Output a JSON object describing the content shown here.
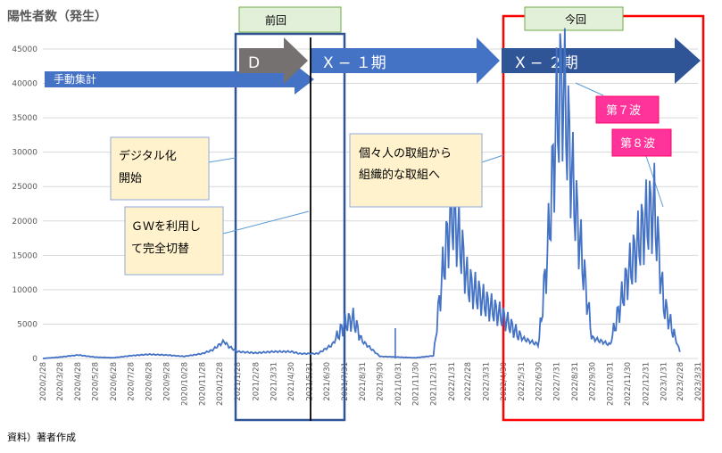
{
  "chart_data": {
    "type": "line",
    "title": "陽性者数（発生）",
    "source_note": "資料）著者作成",
    "ylim": [
      0,
      45000
    ],
    "y_ticks": [
      0,
      5000,
      10000,
      15000,
      20000,
      25000,
      30000,
      35000,
      40000,
      45000
    ],
    "x_ticks": [
      "2020/2/28",
      "2020/3/28",
      "2020/4/28",
      "2020/5/28",
      "2020/6/28",
      "2020/7/28",
      "2020/8/28",
      "2020/9/28",
      "2020/10/28",
      "2020/11/28",
      "2020/12/28",
      "2021/1/28",
      "2021/2/28",
      "2021/3/31",
      "2021/4/30",
      "2021/5/31",
      "2021/6/30",
      "2021/7/31",
      "2021/8/31",
      "2021/9/30",
      "2021/10/31",
      "2021/11/30",
      "2021/12/31",
      "2022/1/31",
      "2022/2/28",
      "2022/3/31",
      "2022/4/30",
      "2022/5/31",
      "2022/6/30",
      "2022/7/31",
      "2022/8/31",
      "2022/9/30",
      "2022/10/31",
      "2022/11/30",
      "2022/12/31",
      "2023/1/31",
      "2023/2/28",
      "2023/3/31"
    ],
    "x_tick_labels": [
      "2020/2/28",
      "2020/3/28",
      "2020/4/28",
      "2020/5/28",
      "2020/6/28",
      "2020/7/28",
      "2020/8/28",
      "2020/9/28",
      "2020/10/28",
      "2020/11/28",
      "2020/12/28",
      "2021/1/28",
      "2021/2/28",
      "2021/3/31",
      "2021/4/30",
      "2021/5/31",
      "2021/6/30",
      "2021/7/31",
      "2021/8/31",
      "2021/9/30",
      "2021/10/31",
      "2021/11/30",
      "2021/12/31",
      "2022/1/31",
      "2022/2/28",
      "2022/3/31",
      "2022/4/30",
      "2022/5/31",
      "2022/6/30",
      "2022/7/31",
      "2022/8/31",
      "2022/9/30",
      "2022/10/31",
      "2022/11/30",
      "2022/12/31",
      "2023/1/31",
      "2023/2/28",
      "2023/3/31"
    ],
    "series": [
      {
        "color": "#4472c4",
        "x": [
          "2020/2/28",
          "2020/3/28",
          "2020/4/28",
          "2020/5/28",
          "2020/6/28",
          "2020/7/28",
          "2020/8/28",
          "2020/9/28",
          "2020/10/28",
          "2020/11/28",
          "2020/12/15",
          "2021/1/5",
          "2021/1/12",
          "2021/1/28",
          "2021/2/28",
          "2021/3/31",
          "2021/4/30",
          "2021/5/15",
          "2021/6/15",
          "2021/7/10",
          "2021/7/31",
          "2021/8/15",
          "2021/8/31",
          "2021/9/30",
          "2021/10/31",
          "2021/11/30",
          "2021/12/31",
          "2022/1/15",
          "2022/1/31",
          "2022/2/15",
          "2022/2/28",
          "2022/3/31",
          "2022/4/30",
          "2022/5/31",
          "2022/6/30",
          "2022/7/15",
          "2022/7/31",
          "2022/8/10",
          "2022/8/31",
          "2022/9/30",
          "2022/10/31",
          "2022/11/30",
          "2022/12/31",
          "2023/1/15",
          "2023/1/31",
          "2023/2/28"
        ],
        "y": [
          0,
          200,
          500,
          200,
          100,
          400,
          600,
          500,
          300,
          700,
          1200,
          2500,
          1800,
          1000,
          800,
          1000,
          1000,
          700,
          700,
          2000,
          5000,
          5700,
          2500,
          300,
          200,
          100,
          400,
          12000,
          21500,
          17000,
          11000,
          8000,
          6000,
          3000,
          2000,
          15000,
          35000,
          40500,
          23000,
          3000,
          2000,
          12000,
          20000,
          22000,
          8000,
          1000
        ],
        "weekly_oscillation": true
      }
    ],
    "annotations": {
      "phases": [
        {
          "label": "D",
          "color": "#767171"
        },
        {
          "label": "X − １期",
          "color": "#4472c4"
        },
        {
          "label": "X − ２期",
          "color": "#2f5597"
        }
      ],
      "manual_count": "手動集計",
      "previous": "前回",
      "current": "今回",
      "callouts": [
        {
          "text": [
            "デジタル化",
            "開始"
          ]
        },
        {
          "text": [
            "ＧＷを利用し",
            "て完全切替"
          ]
        },
        {
          "text": [
            "個々人の取組から",
            "組織的な取組へ"
          ]
        }
      ],
      "wave_labels": [
        {
          "text": "第７波",
          "color": "#ff3399"
        },
        {
          "text": "第８波",
          "color": "#ff3399"
        }
      ]
    }
  }
}
